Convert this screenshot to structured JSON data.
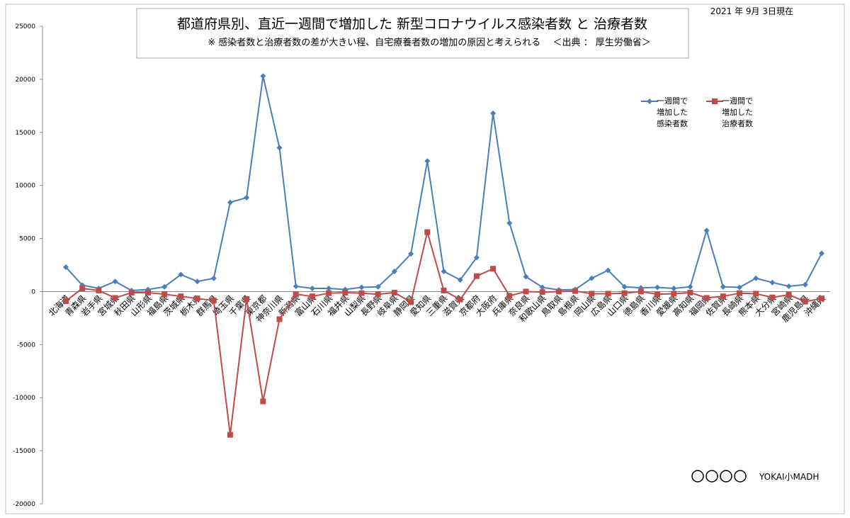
{
  "chart_data": {
    "type": "line",
    "title": "都道府県別、直近一週間で増加した  新型コロナウイルス感染者数 と 治療者数",
    "subtitle": "※ 感染者数と治療者数の差が大きい程、自宅療養者数の増加の原因と考えられる　 ＜出典 ： 厚生労働省＞",
    "date": "2021 年 9月 3日現在",
    "logo": "YOKAI小MADH",
    "categories": [
      "北海道",
      "青森県",
      "岩手県",
      "宮城県",
      "秋田県",
      "山形県",
      "福島県",
      "茨城県",
      "栃木県",
      "群馬県",
      "埼玉県",
      "千葉県",
      "東京都",
      "神奈川県",
      "新潟県",
      "富山県",
      "石川県",
      "福井県",
      "山梨県",
      "長野県",
      "岐阜県",
      "静岡県",
      "愛知県",
      "三重県",
      "滋賀県",
      "京都府",
      "大阪府",
      "兵庫県",
      "奈良県",
      "和歌山県",
      "鳥取県",
      "島根県",
      "岡山県",
      "広島県",
      "山口県",
      "徳島県",
      "香川県",
      "愛媛県",
      "高知県",
      "福岡県",
      "佐賀県",
      "長崎県",
      "熊本県",
      "大分県",
      "宮崎県",
      "鹿児島県",
      "沖縄県"
    ],
    "series": [
      {
        "name": "一週間で\n増加した\n感染者数",
        "color": "#4a7ebb",
        "marker": "diamond",
        "values": [
          2300,
          600,
          300,
          950,
          100,
          200,
          450,
          1600,
          950,
          1250,
          8400,
          8850,
          20300,
          13550,
          500,
          300,
          300,
          200,
          400,
          450,
          1900,
          3550,
          12300,
          1900,
          1100,
          3200,
          16800,
          6450,
          1400,
          400,
          150,
          200,
          1250,
          2000,
          450,
          350,
          400,
          300,
          450,
          5750,
          450,
          400,
          1250,
          850,
          500,
          650,
          3600
        ]
      },
      {
        "name": "一週間で\n増加した\n治療者数",
        "color": "#be4b48",
        "marker": "square",
        "values": [
          -900,
          300,
          100,
          -600,
          -100,
          -100,
          -250,
          -450,
          -650,
          -850,
          -13500,
          -700,
          -10350,
          -2600,
          -250,
          -450,
          -150,
          -100,
          -150,
          -250,
          -100,
          -1000,
          5600,
          100,
          -750,
          1450,
          2150,
          -400,
          0,
          -50,
          0,
          50,
          -200,
          -200,
          -150,
          0,
          -250,
          -200,
          -100,
          -600,
          -450,
          -150,
          -200,
          -550,
          -300,
          -950,
          -650
        ]
      }
    ],
    "ylim": [
      -20000,
      25000
    ],
    "yticks": [
      -20000,
      -15000,
      -10000,
      -5000,
      0,
      5000,
      10000,
      15000,
      20000,
      25000
    ],
    "grid": false
  }
}
